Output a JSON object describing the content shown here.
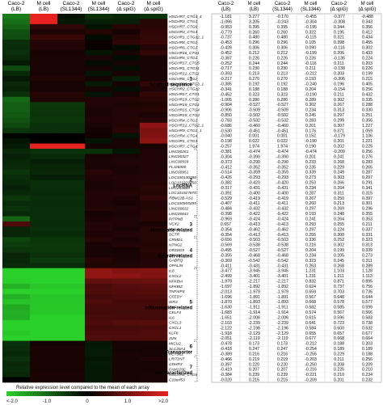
{
  "heatmap": {
    "columns": [
      "Caco-2 (LB)",
      "M cell (LB)",
      "Caco-2 (SL1344)",
      "M cell (SL1344)",
      "Caco-2 (Δ spiG)",
      "M cell (Δ spiG)"
    ],
    "column_lines": [
      [
        "Caco-2",
        "(LB)"
      ],
      [
        "M cell",
        "(LB)"
      ],
      [
        "Caco-2",
        "(SL1344)"
      ],
      [
        "M cell",
        "(SL1344)"
      ],
      [
        "Caco-2",
        "(Δ spiG)"
      ],
      [
        "M cell",
        "(Δ spiG)"
      ]
    ],
    "color_low": "#2bd12b",
    "color_mid": "#000000",
    "color_high": "#e8231f",
    "colorbar_label": "Relative expression level compared to the mean of each array",
    "colorbar_ticks": [
      "<-2.0",
      "-1.0",
      "0",
      "1.0",
      ">2.0"
    ],
    "gene_labels": [
      {
        "row": 0,
        "text": "HSCHR7_CTG4_4"
      },
      {
        "row": 1,
        "text": "HSCHR3_CTG1"
      },
      {
        "row": 2,
        "text": "HSCHR7_CTG6"
      },
      {
        "row": 3,
        "text": "HSCHR3_CTG4"
      },
      {
        "row": 4,
        "text": "HSCHR1_CTG32_1"
      },
      {
        "row": 5,
        "text": "HSCHR8_CTG1"
      },
      {
        "row": 6,
        "text": "HSCHR6_CTG1"
      },
      {
        "row": 7,
        "text": "HSCHR16_CTG1"
      },
      {
        "row": 8,
        "text": "HSCHR5_CTG1"
      },
      {
        "row": 9,
        "text": "HSCHR17_CTG5"
      },
      {
        "row": 10,
        "text": "HSCHR1_CTG31"
      },
      {
        "row": 11,
        "text": "HSCHR12_CTG1"
      },
      {
        "row": 12,
        "text": "HSCHR6_CTG2"
      },
      {
        "row": 13,
        "text": "HSCHR19_CTG3_1"
      },
      {
        "row": 14,
        "text": "HSCHR2_CTG12"
      },
      {
        "row": 15,
        "text": "HSCHR17_CTG1"
      },
      {
        "row": 16,
        "text": "HSCHR19_CTG2"
      },
      {
        "row": 17,
        "text": "HSCHR19_CTG1"
      },
      {
        "row": 18,
        "text": "HSCHR15_CTG4"
      },
      {
        "row": 19,
        "text": "HSCHR19_CTG3"
      },
      {
        "row": 20,
        "text": "HSCHR4_CTG1"
      },
      {
        "row": 21,
        "text": "HSCHR12_CTG2_1"
      },
      {
        "row": 22,
        "text": "HSCHR9_CTG1_1"
      },
      {
        "row": 23,
        "text": "HSCHR4_CTG4"
      },
      {
        "row": 24,
        "text": "HSCHR1_CTG3"
      },
      {
        "row": 25,
        "text": "HSCHR7_CTG4"
      },
      {
        "row": 26,
        "text": "LINC00261"
      },
      {
        "row": 27,
        "text": "LINC00327"
      },
      {
        "row": 28,
        "text": "LINC00939"
      },
      {
        "row": 29,
        "text": "FLJ26000"
      },
      {
        "row": 30,
        "text": "LINC00951"
      },
      {
        "row": 31,
        "text": "LOC100130298"
      },
      {
        "row": 32,
        "text": "LOC101929450"
      },
      {
        "row": 33,
        "text": "LOC284889"
      },
      {
        "row": 34,
        "text": "LOC101927870"
      },
      {
        "row": 35,
        "text": "RBM12B-AS1"
      },
      {
        "row": 36,
        "text": "LOC100505495"
      },
      {
        "row": 37,
        "text": "LINC00632"
      },
      {
        "row": 38,
        "text": "LINC00641"
      },
      {
        "row": 39,
        "text": "PITPNB"
      },
      {
        "row": 40,
        "text": "VCX2"
      },
      {
        "row": 41,
        "text": "MYL4"
      },
      {
        "row": 42,
        "text": "SCTR"
      },
      {
        "row": 43,
        "text": "CRMD1"
      },
      {
        "row": 44,
        "text": "NTNG2"
      },
      {
        "row": 45,
        "text": "OR10G9"
      },
      {
        "row": 46,
        "text": "ZFP28"
      },
      {
        "row": 47,
        "text": "GABRQ"
      },
      {
        "row": 48,
        "text": "OPALIN"
      },
      {
        "row": 49,
        "text": "IL8"
      },
      {
        "row": 50,
        "text": "CXCL2"
      },
      {
        "row": 51,
        "text": "NFKBIA"
      },
      {
        "row": 52,
        "text": "NFKBIZ"
      },
      {
        "row": 53,
        "text": "TNFAIP3"
      },
      {
        "row": 54,
        "text": "CFEDY"
      },
      {
        "row": 55,
        "text": "IER3"
      },
      {
        "row": 56,
        "text": "TNF"
      },
      {
        "row": 57,
        "text": "CELF4"
      },
      {
        "row": 58,
        "text": "IL6"
      },
      {
        "row": 59,
        "text": "CXCL3"
      },
      {
        "row": 60,
        "text": "CXCL1"
      },
      {
        "row": 61,
        "text": "KLF6"
      },
      {
        "row": 62,
        "text": "JUN"
      },
      {
        "row": 63,
        "text": "MICU2"
      },
      {
        "row": 64,
        "text": "SLC26A1"
      },
      {
        "row": 65,
        "text": "KCTD11"
      },
      {
        "row": 66,
        "text": "LRIT2NT"
      },
      {
        "row": 67,
        "text": "CDHR3"
      },
      {
        "row": 68,
        "text": "FAM129C"
      },
      {
        "row": 69,
        "text": "HSCHR6_CTG6"
      },
      {
        "row": 70,
        "text": "C10orf53"
      }
    ],
    "groups": [
      {
        "number": "1",
        "name": "Scaffold sequence",
        "start": 0,
        "end": 25
      },
      {
        "number": "2",
        "name": "LncRNA",
        "start": 26,
        "end": 38
      },
      {
        "number": "3",
        "name": "Membrane-related",
        "start": 39,
        "end": 42
      },
      {
        "number": "4",
        "name": "Neuron-related",
        "start": 43,
        "end": 48
      },
      {
        "number": "5",
        "name": "Inflammation-related",
        "start": 49,
        "end": 62
      },
      {
        "number": "6",
        "name": "Transporter",
        "start": 63,
        "end": 65
      },
      {
        "number": "7",
        "name": "Uncharacterized",
        "start": 66,
        "end": 70
      }
    ]
  },
  "table": {
    "columns": [
      "Caco-2 (LB)",
      "M cell (LB)",
      "Caco-2 (SL1344)",
      "M cell (SL1344)",
      "Caco-2 (Δ spiG)",
      "M cell (Δ spiG)"
    ],
    "rows": [
      [
        "-1.181",
        "3.277",
        "-0.170",
        "-0.455",
        "-0.377",
        "-0.488"
      ],
      [
        "-1.066",
        "3.205",
        "-0.243",
        "-0.304",
        "-0.308",
        "0.343"
      ],
      [
        "-0.953",
        "0.395",
        "0.395",
        "-0.195",
        "0.344",
        "0.356"
      ],
      [
        "-0.779",
        "0.260",
        "0.260",
        "0.322",
        "0.195",
        "0.412"
      ],
      [
        "-0.737",
        "0.480",
        "0.480",
        "-0.115",
        "0.321",
        "0.434"
      ],
      [
        "-0.453",
        "0.296",
        "0.296",
        "0.105",
        "0.398",
        "0.455"
      ],
      [
        "-0.426",
        "0.306",
        "0.306",
        "0.090",
        "-0.116",
        "0.302"
      ],
      [
        "-0.452",
        "0.212",
        "0.212",
        "-0.199",
        "0.206",
        "0.433"
      ],
      [
        "-0.387",
        "0.226",
        "0.226",
        "0.226",
        "-0.136",
        "0.224"
      ],
      [
        "-0.252",
        "0.244",
        "0.244",
        "-0.116",
        "0.211",
        "0.203"
      ],
      [
        "-0.717",
        "0.230",
        "0.230",
        "0.211",
        "-0.138",
        "0.226"
      ],
      [
        "-0.393",
        "0.213",
        "0.213",
        "-0.212",
        "0.203",
        "0.199"
      ],
      [
        "-0.217",
        "0.270",
        "0.270",
        "0.193",
        "-0.306",
        "0.215"
      ],
      [
        "-0.385",
        "0.192",
        "0.192",
        "-0.240",
        "0.196",
        "0.405"
      ],
      [
        "-0.341",
        "0.188",
        "0.188",
        "0.204",
        "-0.154",
        "0.256"
      ],
      [
        "-0.452",
        "0.323",
        "0.323",
        "-0.190",
        "0.211",
        "0.432"
      ],
      [
        "-1.005",
        "0.280",
        "0.280",
        "0.289",
        "0.302",
        "0.335"
      ],
      [
        "-0.904",
        "-0.527",
        "-0.527",
        "0.302",
        "0.267",
        "0.288"
      ],
      [
        "-0.906",
        "-0.509",
        "-0.509",
        "0.234",
        "0.313",
        "0.330"
      ],
      [
        "-0.850",
        "-0.502",
        "-0.502",
        "0.245",
        "0.297",
        "0.251"
      ],
      [
        "-0.783",
        "-0.532",
        "-0.532",
        "0.283",
        "0.299",
        "0.356"
      ],
      [
        "-0.686",
        "-0.460",
        "-0.460",
        "0.201",
        "0.307",
        "1.227"
      ],
      [
        "-0.530",
        "-0.451",
        "-0.451",
        "0.176",
        "0.371",
        "1.059"
      ],
      [
        "-0.040",
        "0.001",
        "0.001",
        "0.152",
        "-0.179",
        "1.106"
      ],
      [
        "-0.198",
        "0.022",
        "0.022",
        "-0.190",
        "0.201",
        "1.221"
      ],
      [
        "-0.257",
        "1.974",
        "1.974",
        "0.190",
        "0.202",
        "0.225"
      ],
      [
        "-0.381",
        "-0.474",
        "-0.474",
        "-0.474",
        "-0.209",
        "0.256"
      ],
      [
        "-0.304",
        "-0.390",
        "-0.390",
        "0.201",
        "0.241",
        "0.276"
      ],
      [
        "-0.373",
        "-0.290",
        "-0.290",
        "0.233",
        "0.268",
        "0.283"
      ],
      [
        "-0.412",
        "-0.352",
        "-0.352",
        "0.235",
        "0.229",
        "0.265"
      ],
      [
        "-0.514",
        "-0.359",
        "-0.359",
        "0.339",
        "0.249",
        "0.287"
      ],
      [
        "-0.426",
        "-0.293",
        "-0.293",
        "0.273",
        "0.303",
        "0.297"
      ],
      [
        "-0.382",
        "-0.420",
        "-0.420",
        "0.253",
        "0.266",
        "0.291"
      ],
      [
        "-0.317",
        "-0.431",
        "-0.431",
        "0.234",
        "0.264",
        "0.341"
      ],
      [
        "-0.391",
        "-0.400",
        "-0.400",
        "0.287",
        "0.311",
        "0.315"
      ],
      [
        "-0.529",
        "-0.419",
        "-0.419",
        "0.267",
        "0.250",
        "0.397"
      ],
      [
        "-0.407",
        "-0.411",
        "-0.411",
        "0.260",
        "0.213",
        "0.301"
      ],
      [
        "-0.484",
        "-0.432",
        "-0.432",
        "0.297",
        "0.269",
        "0.296"
      ],
      [
        "-0.398",
        "-0.422",
        "-0.422",
        "0.193",
        "0.248",
        "0.355"
      ],
      [
        "-0.969",
        "-0.424",
        "-0.424",
        "0.241",
        "0.264",
        "0.353"
      ],
      [
        "0.657",
        "-0.413",
        "-0.413",
        "0.293",
        "0.255",
        "0.211"
      ],
      [
        "-0.354",
        "-0.462",
        "-0.462",
        "0.297",
        "0.224",
        "0.337"
      ],
      [
        "-0.354",
        "-0.413",
        "-0.413",
        "0.255",
        "0.308",
        "0.331"
      ],
      [
        "-0.656",
        "-0.503",
        "-0.503",
        "0.336",
        "0.252",
        "0.323"
      ],
      [
        "-0.569",
        "-0.538",
        "-0.538",
        "0.216",
        "0.302",
        "0.313"
      ],
      [
        "-0.495",
        "-0.527",
        "-0.527",
        "0.204",
        "0.199",
        "0.339"
      ],
      [
        "-0.355",
        "-0.468",
        "-0.468",
        "0.234",
        "0.205",
        "0.273"
      ],
      [
        "-0.369",
        "-0.542",
        "-0.542",
        "0.323",
        "0.245",
        "0.311"
      ],
      [
        "-0.411",
        "-0.431",
        "-0.431",
        "0.263",
        "0.268",
        "0.289"
      ],
      [
        "-3.477",
        "-3.945",
        "-3.945",
        "1.231",
        "1.103",
        "1.128"
      ],
      [
        "-2.499",
        "-3.401",
        "-3.401",
        "1.231",
        "1.211",
        "1.113"
      ],
      [
        "-1.979",
        "-2.217",
        "-2.217",
        "0.832",
        "0.871",
        "0.895"
      ],
      [
        "-1.697",
        "-1.892",
        "-1.892",
        "0.624",
        "0.737",
        "0.756"
      ],
      [
        "-2.013",
        "-1.979",
        "-1.979",
        "0.659",
        "0.703",
        "0.735"
      ],
      [
        "-1.696",
        "-1.891",
        "-1.891",
        "0.567",
        "0.648",
        "0.644"
      ],
      [
        "-1.870",
        "-1.893",
        "-1.893",
        "0.668",
        "0.578",
        "0.577"
      ],
      [
        "-1.630",
        "-1.911",
        "-1.911",
        "0.582",
        "0.585",
        "0.599"
      ],
      [
        "-1.683",
        "-1.914",
        "-1.914",
        "0.574",
        "0.567",
        "0.566"
      ],
      [
        "-1.651",
        "-2.006",
        "-2.006",
        "0.615",
        "0.596",
        "0.583"
      ],
      [
        "-2.103",
        "-2.239",
        "-2.239",
        "0.641",
        "0.723",
        "0.738"
      ],
      [
        "-2.122",
        "-2.196",
        "-2.196",
        "0.584",
        "0.600",
        "0.632"
      ],
      [
        "-1.918",
        "-2.129",
        "-2.129",
        "0.655",
        "0.657",
        "0.677"
      ],
      [
        "-2.051",
        "-2.119",
        "-2.119",
        "0.677",
        "0.668",
        "0.664"
      ],
      [
        "-0.478",
        "0.173",
        "0.173",
        "-0.212",
        "0.188",
        "0.203"
      ],
      [
        "-0.418",
        "0.247",
        "0.247",
        "-0.254",
        "0.189",
        "0.189"
      ],
      [
        "-0.389",
        "0.216",
        "0.216",
        "-0.255",
        "0.229",
        "0.188"
      ],
      [
        "-0.466",
        "0.219",
        "0.219",
        "-0.203",
        "0.211",
        "0.256"
      ],
      [
        "-0.397",
        "0.220",
        "0.220",
        "-0.250",
        "0.208",
        "0.209"
      ],
      [
        "-0.419",
        "0.207",
        "0.207",
        "-0.216",
        "0.225",
        "0.210"
      ],
      [
        "-0.384",
        "0.239",
        "0.239",
        "-0.221",
        "0.210",
        "0.234"
      ],
      [
        "-0.020",
        "0.215",
        "0.215",
        "-0.209",
        "0.201",
        "0.232"
      ]
    ]
  }
}
